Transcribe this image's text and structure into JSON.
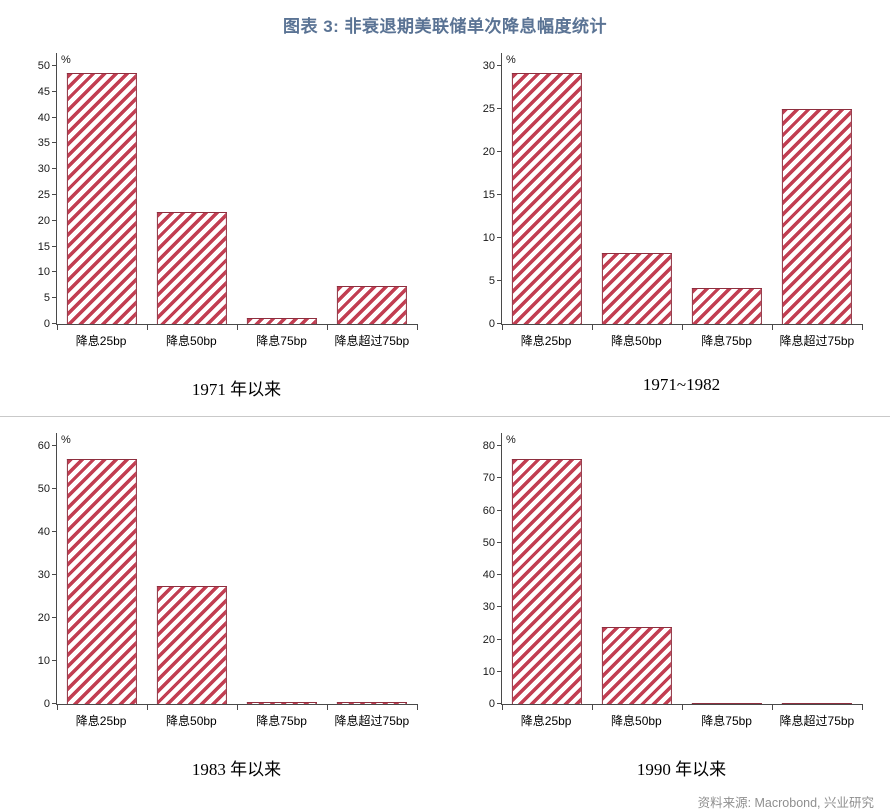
{
  "page": {
    "title": "图表 3: 非衰退期美联储单次降息幅度统计",
    "source": "资料来源: Macrobond, 兴业研究"
  },
  "colors": {
    "title_text": "#5a7394",
    "bar_hatch": "#c23e52",
    "bar_border": "#8e2f3f",
    "axis_line": "#4a4a4a",
    "divider": "#c9c9c9",
    "source_text": "#8f8f8f"
  },
  "chart_data": [
    {
      "type": "bar",
      "title": "1971 年以来",
      "unit": "%",
      "categories": [
        "降息25bp",
        "降息50bp",
        "降息75bp",
        "降息超过75bp"
      ],
      "values": [
        48.6,
        21.8,
        1.2,
        7.3
      ],
      "ylim": [
        0,
        50
      ],
      "ytick_step": 5,
      "grid": false,
      "legend": false,
      "bar_style": "red diagonal hatch, dark red outline"
    },
    {
      "type": "bar",
      "title": "1971~1982",
      "unit": "%",
      "categories": [
        "降息25bp",
        "降息50bp",
        "降息75bp",
        "降息超过75bp"
      ],
      "values": [
        29.2,
        8.3,
        4.2,
        25.0
      ],
      "ylim": [
        0,
        30
      ],
      "ytick_step": 5,
      "grid": false,
      "legend": false,
      "bar_style": "red diagonal hatch, dark red outline"
    },
    {
      "type": "bar",
      "title": "1983 年以来",
      "unit": "%",
      "categories": [
        "降息25bp",
        "降息50bp",
        "降息75bp",
        "降息超过75bp"
      ],
      "values": [
        57.0,
        27.5,
        0.4,
        0.4
      ],
      "ylim": [
        0,
        60
      ],
      "ytick_step": 10,
      "grid": false,
      "legend": false,
      "bar_style": "red diagonal hatch, dark red outline"
    },
    {
      "type": "bar",
      "title": "1990 年以来",
      "unit": "%",
      "categories": [
        "降息25bp",
        "降息50bp",
        "降息75bp",
        "降息超过75bp"
      ],
      "values": [
        76.0,
        24.0,
        0.4,
        0.4
      ],
      "ylim": [
        0,
        80
      ],
      "ytick_step": 10,
      "grid": false,
      "legend": false,
      "bar_style": "red diagonal hatch, dark red outline"
    }
  ]
}
